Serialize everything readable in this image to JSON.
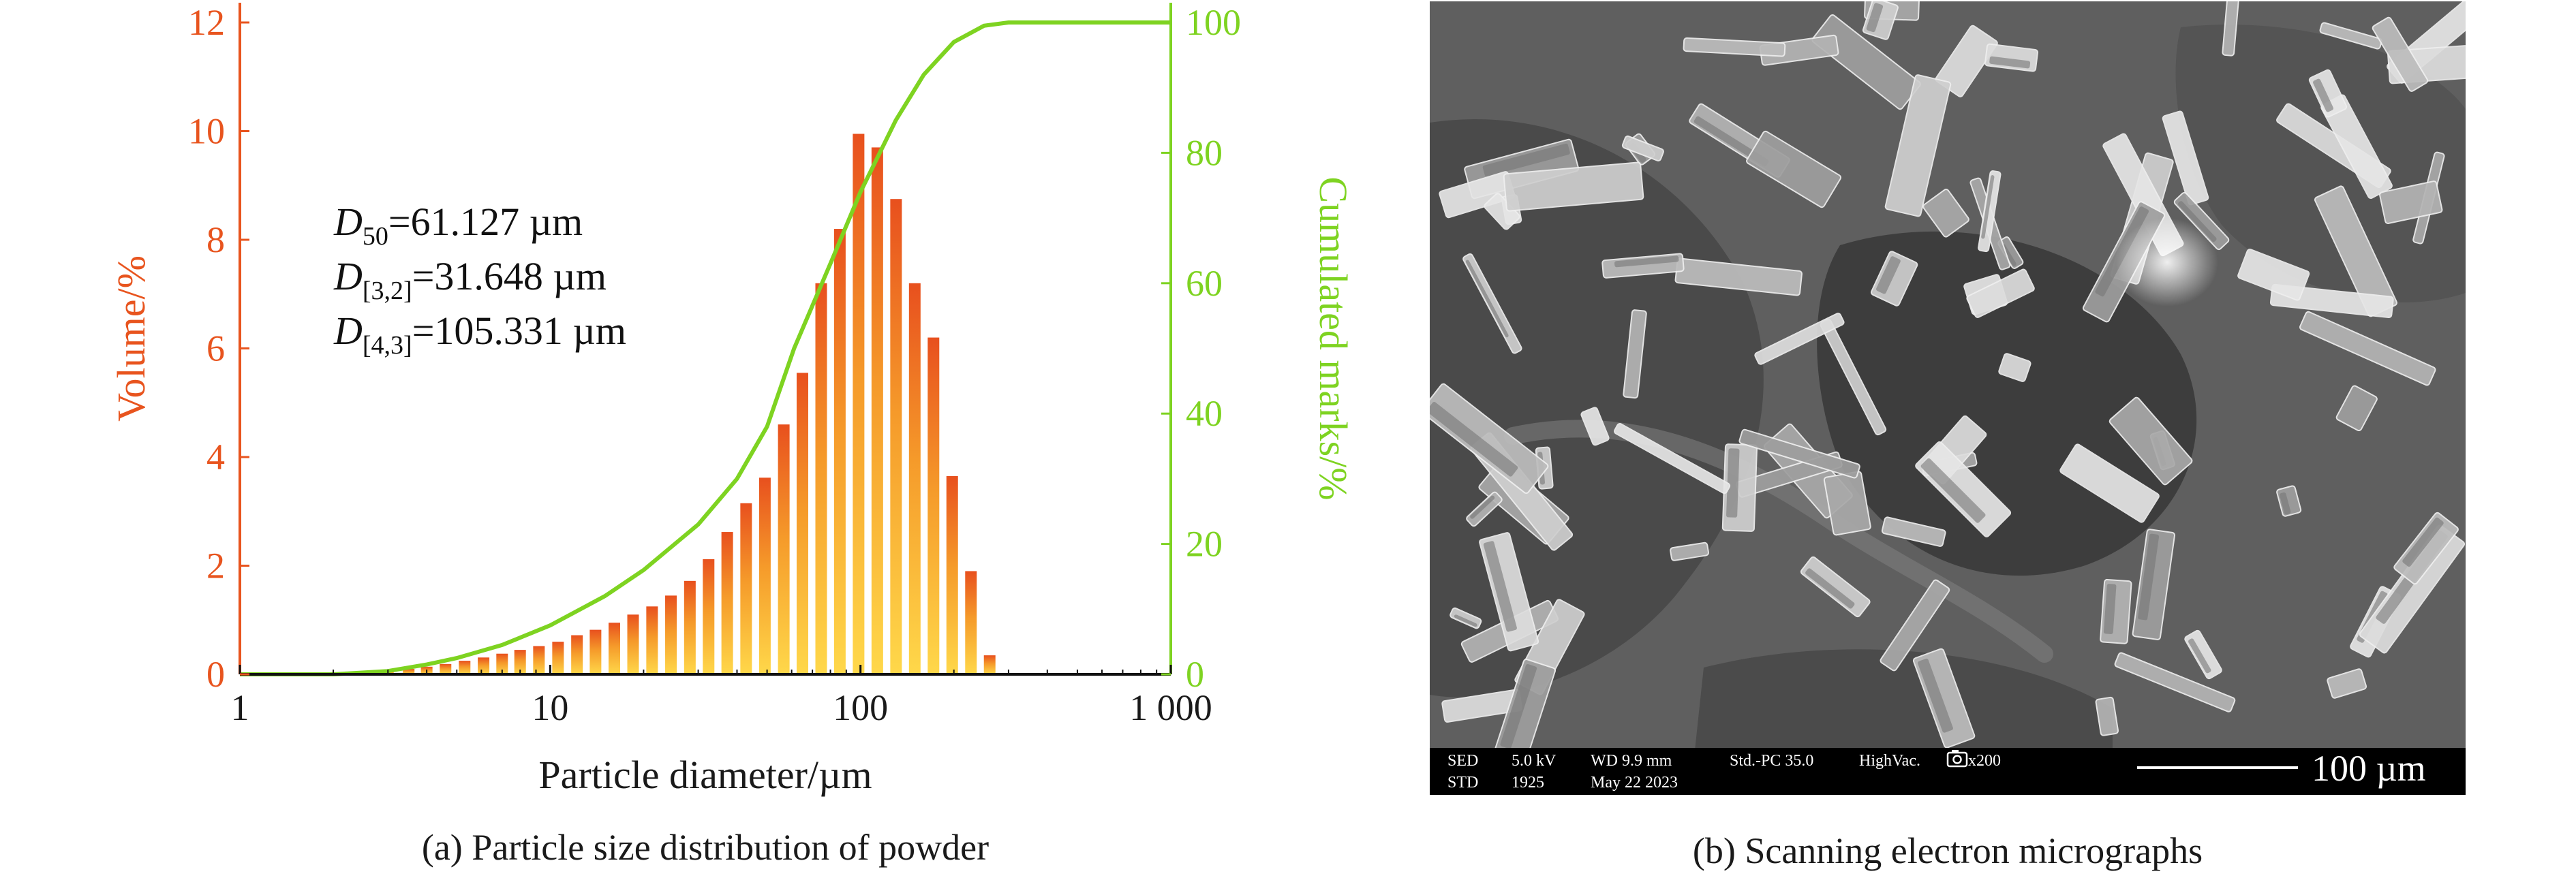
{
  "panel_a": {
    "caption": "(a) Particle size distribution of powder",
    "stats": [
      {
        "symbol": "D",
        "sub": "50",
        "value": "=61.127 µm"
      },
      {
        "symbol": "D",
        "sub": "[3,2]",
        "value": "=31.648 µm"
      },
      {
        "symbol": "D",
        "sub": "[4,3]",
        "value": "=105.331 µm"
      }
    ]
  },
  "panel_b": {
    "caption": "(b) Scanning electron micrographs",
    "info_row1": [
      "SED",
      "5.0 kV",
      "WD 9.9 mm",
      "Std.-PC 35.0",
      "HighVac.",
      "x200"
    ],
    "info_row2": [
      "STD",
      "1925",
      "May 22 2023"
    ],
    "scale_bar_label": "100 µm",
    "camera_icon": "camera-icon"
  },
  "colors": {
    "bar_top": "#e8501e",
    "bar_bottom": "#ffd84a",
    "cumulative_line": "#7ed321",
    "left_axis": "#e8541e",
    "right_axis": "#7ed321",
    "sem_background": "#5f5f5f"
  },
  "chart_data": {
    "type": "bar",
    "xlabel": "Particle diameter/µm",
    "ylabel": "Volume/%",
    "y2label": "Cumulated marks/%",
    "x_scale": "log",
    "xlim": [
      1,
      1000
    ],
    "x_ticks": [
      1,
      10,
      100,
      1000
    ],
    "x_tick_labels": [
      "1",
      "10",
      "100",
      "1 000"
    ],
    "ylim": [
      0,
      12
    ],
    "y_ticks": [
      0,
      2,
      4,
      6,
      8,
      10,
      12
    ],
    "y2lim": [
      0,
      100
    ],
    "y2_ticks": [
      0,
      20,
      40,
      60,
      80,
      100
    ],
    "grid": false,
    "legend": "none",
    "series": [
      {
        "kind": "bar",
        "x": [
          2.6,
          3.0,
          3.5,
          4.0,
          4.6,
          5.3,
          6.1,
          7.0,
          8.0,
          9.2,
          10.6,
          12.2,
          14.0,
          16.1,
          18.5,
          21.3,
          24.5,
          28.2,
          32.4,
          37.2,
          42.8,
          49.2,
          56.6,
          65.0,
          74.7,
          85.8,
          98.6,
          113.3,
          130.2,
          149.6,
          171.9,
          197.5,
          227.0,
          260.8
        ],
        "values": [
          0.04,
          0.07,
          0.1,
          0.14,
          0.19,
          0.25,
          0.31,
          0.38,
          0.45,
          0.52,
          0.6,
          0.72,
          0.82,
          0.95,
          1.1,
          1.25,
          1.45,
          1.72,
          2.12,
          2.62,
          3.15,
          3.62,
          4.6,
          5.55,
          7.2,
          8.2,
          9.95,
          9.7,
          8.75,
          7.2,
          6.2,
          3.65,
          1.9,
          0.35
        ]
      },
      {
        "kind": "line",
        "axis": "right",
        "x": [
          1,
          2,
          3,
          4,
          5,
          7,
          10,
          15,
          20,
          30,
          40,
          50,
          61.127,
          80,
          100,
          130,
          160,
          200,
          250,
          300,
          400,
          600,
          1000
        ],
        "values": [
          0,
          0,
          0.5,
          1.5,
          2.5,
          4.5,
          7.5,
          12,
          16,
          23,
          30,
          38,
          50,
          63,
          74,
          85,
          92,
          97,
          99.5,
          100,
          100,
          100,
          100
        ]
      }
    ]
  }
}
